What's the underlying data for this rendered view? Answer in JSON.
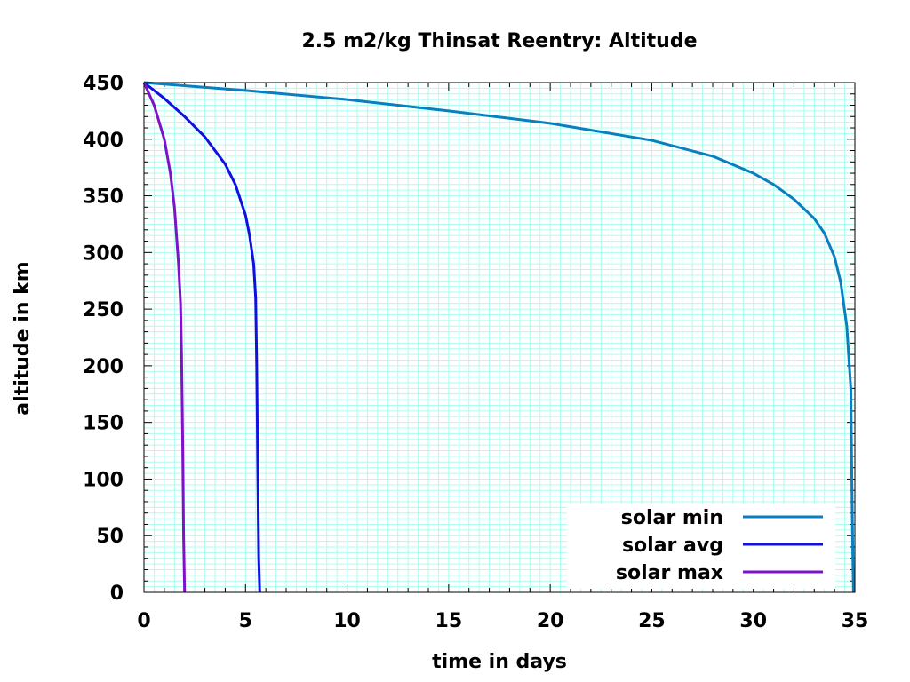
{
  "chart_data": {
    "type": "line",
    "title": "2.5 m2/kg Thinsat Reentry: Altitude",
    "xlabel": "time in days",
    "ylabel": "altitude in km",
    "xlim": [
      0,
      35
    ],
    "ylim": [
      0,
      450
    ],
    "x_ticks": [
      "0",
      "5",
      "10",
      "15",
      "20",
      "25",
      "30",
      "35"
    ],
    "y_ticks": [
      "0",
      "50",
      "100",
      "150",
      "200",
      "250",
      "300",
      "350",
      "400",
      "450"
    ],
    "grid": true,
    "grid_color": "#aaffee",
    "legend_position": "bottom-right",
    "series": [
      {
        "name": "solar min",
        "color": "#0a7fbf",
        "x": [
          0,
          5,
          10,
          15,
          20,
          25,
          28,
          30,
          31,
          32,
          33,
          33.5,
          34,
          34.3,
          34.6,
          34.8,
          34.85,
          34.9,
          34.93
        ],
        "y": [
          450,
          443,
          435,
          425,
          414,
          399,
          385,
          370,
          360,
          347,
          330,
          317,
          296,
          274,
          235,
          180,
          100,
          30,
          0
        ]
      },
      {
        "name": "solar avg",
        "color": "#1010e0",
        "x": [
          0,
          1,
          2,
          3,
          4,
          4.5,
          5,
          5.2,
          5.4,
          5.5,
          5.55,
          5.6,
          5.65,
          5.7
        ],
        "y": [
          450,
          436,
          420,
          402,
          378,
          360,
          333,
          315,
          290,
          260,
          200,
          110,
          30,
          0
        ]
      },
      {
        "name": "solar max",
        "color": "#7d12c8",
        "x": [
          0,
          0.5,
          1.0,
          1.3,
          1.5,
          1.7,
          1.8,
          1.85,
          1.9,
          1.95,
          2.0
        ],
        "y": [
          450,
          430,
          400,
          370,
          340,
          290,
          255,
          210,
          140,
          50,
          0
        ]
      }
    ]
  }
}
